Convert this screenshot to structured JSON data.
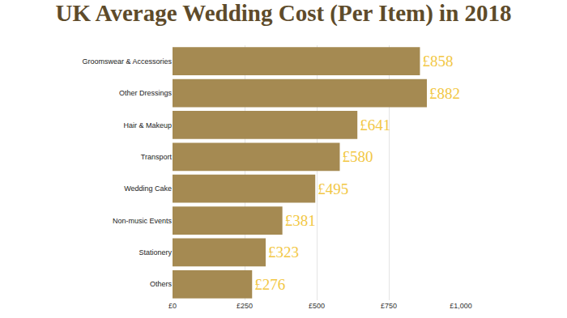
{
  "chart_data": {
    "type": "bar",
    "title": "UK Average Wedding Cost (Per Item) in 2018",
    "orientation": "horizontal",
    "categories": [
      "Groomswear & Accessories",
      "Other Dressings",
      "Hair & Makeup",
      "Transport",
      "Wedding Cake",
      "Non-music Events",
      "Stationery",
      "Others"
    ],
    "values": [
      858,
      882,
      641,
      580,
      495,
      381,
      323,
      276
    ],
    "value_labels": [
      "£858",
      "£882",
      "£641",
      "£580",
      "£495",
      "£381",
      "£323",
      "£276"
    ],
    "data_labels": true,
    "color": "#a58a52",
    "xlim": [
      0,
      1000
    ],
    "xticks": [
      {
        "value": 0,
        "label": "£0"
      },
      {
        "value": 250,
        "label": "£250"
      },
      {
        "value": 500,
        "label": "£500"
      },
      {
        "value": 750,
        "label": "£750"
      },
      {
        "value": 1000,
        "label": "£1,000"
      }
    ],
    "grid": true
  }
}
